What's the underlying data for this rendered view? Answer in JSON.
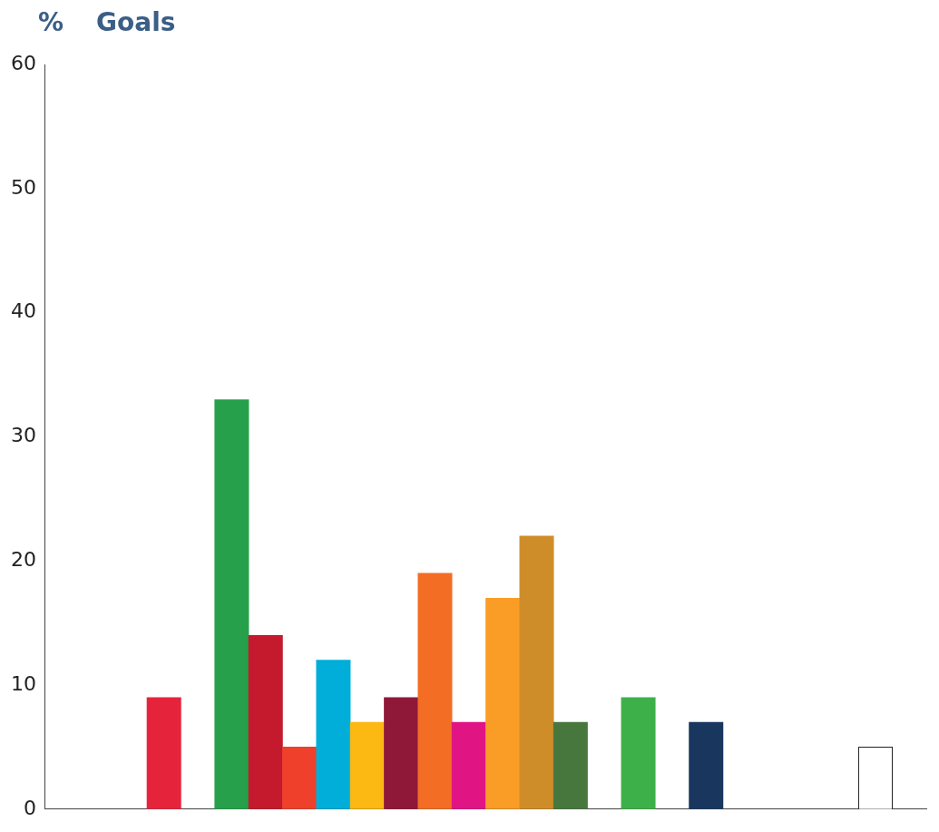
{
  "chart_data": {
    "type": "bar",
    "title": "Goals",
    "ylabel": "%",
    "categories": [
      null,
      null,
      null,
      null,
      null,
      null,
      null,
      null,
      null,
      null,
      null,
      null,
      null,
      null,
      null,
      null,
      null,
      null,
      null,
      null,
      null,
      null,
      null,
      null,
      null,
      null
    ],
    "values": [
      null,
      null,
      null,
      9,
      null,
      33,
      14,
      5,
      12,
      7,
      9,
      19,
      7,
      17,
      22,
      7,
      null,
      9,
      null,
      7,
      null,
      null,
      null,
      null,
      5,
      null
    ],
    "colors": [
      "#ffffff",
      "#ffffff",
      "#ffffff",
      "#e5243b",
      "#ffffff",
      "#26a04a",
      "#c5192d",
      "#ef402b",
      "#00aed9",
      "#fcb813",
      "#8f1838",
      "#f36d25",
      "#e11484",
      "#f99d26",
      "#cf8d2a",
      "#48773e",
      "#ffffff",
      "#3eb049",
      "#ffffff",
      "#19365f",
      "#ffffff",
      "#ffffff",
      "#ffffff",
      "#ffffff",
      "#ffffff",
      "#ffffff"
    ],
    "ylim": [
      0,
      60
    ],
    "yticks": [
      0,
      10,
      20,
      30,
      40,
      50,
      60
    ],
    "grid": false,
    "legend": false
  }
}
